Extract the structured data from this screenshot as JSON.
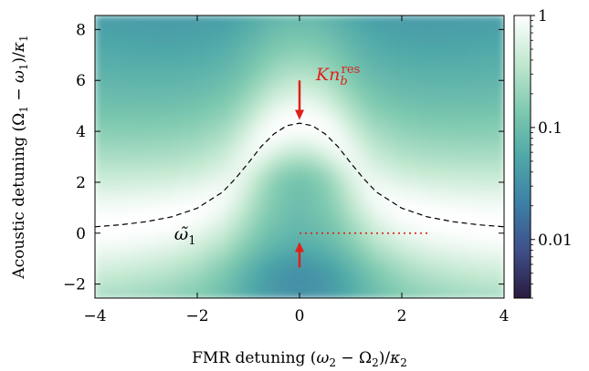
{
  "chart_data": {
    "type": "heatmap",
    "title": "",
    "xlabel": "FMR detuning (ω₂ − Ω₂)/κ₂",
    "ylabel": "Acoustic detuning (Ω₁ − ω₁)/κ₁",
    "xlim": [
      -4,
      4
    ],
    "ylim": [
      -2.55,
      8.55
    ],
    "x_ticks": [
      -4,
      -2,
      0,
      2,
      4
    ],
    "x_tick_labels": [
      "−4",
      "−2",
      "0",
      "2",
      "4"
    ],
    "y_ticks": [
      -2,
      0,
      2,
      4,
      6,
      8
    ],
    "y_tick_labels": [
      "−2",
      "0",
      "2",
      "4",
      "6",
      "8"
    ],
    "colorbar": {
      "scale": "log",
      "range": [
        0.003,
        1
      ],
      "ticks": [
        0.01,
        0.1,
        1
      ],
      "tick_labels": [
        "0.01",
        "0.1",
        "1"
      ],
      "colormap": [
        "#2a1b3d",
        "#3f4f8a",
        "#3c7fa6",
        "#4fa8a8",
        "#7fcab0",
        "#c2e8d0",
        "#ffffff"
      ]
    },
    "curves": [
      {
        "kind": "dashed",
        "label": "ω̃₁",
        "color": "#000000",
        "x": [
          -4,
          -3.5,
          -3,
          -2.5,
          -2,
          -1.5,
          -1.25,
          -1,
          -0.75,
          -0.5,
          -0.25,
          0,
          0.25,
          0.5,
          0.75,
          1,
          1.25,
          1.5,
          2,
          2.5,
          3,
          3.5,
          4
        ],
        "y": [
          0.25,
          0.33,
          0.45,
          0.64,
          0.98,
          1.62,
          2.15,
          2.76,
          3.4,
          3.9,
          4.22,
          4.32,
          4.22,
          3.9,
          3.4,
          2.76,
          2.15,
          1.62,
          0.98,
          0.64,
          0.45,
          0.33,
          0.25
        ]
      },
      {
        "kind": "dotted",
        "color": "#e0201a",
        "x": [
          0,
          2.5
        ],
        "y": [
          0,
          0
        ]
      }
    ],
    "annotations": [
      {
        "text": "Knbres",
        "color": "#e0201a",
        "arrow": {
          "x": 0,
          "y_from": 6.0,
          "y_to": 4.45
        }
      },
      {
        "color": "#e0201a",
        "arrow": {
          "x": 0,
          "y_from": -1.35,
          "y_to": -0.35
        }
      }
    ]
  }
}
